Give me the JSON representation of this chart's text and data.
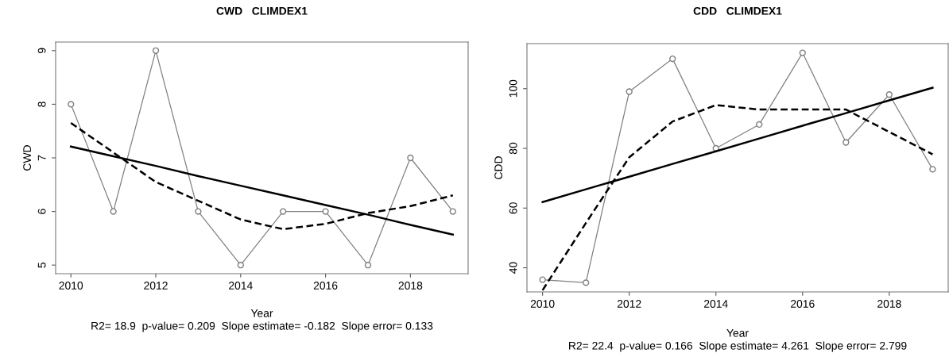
{
  "chart_data": [
    {
      "type": "line",
      "title": "CWD   CLIMDEX1",
      "xlabel": "Year",
      "ylabel": "CWD",
      "annotations": [
        "R2= 18.9  p-value= 0.209  Slope estimate= -0.182  Slope error= 0.133"
      ],
      "x": [
        2010,
        2011,
        2012,
        2013,
        2014,
        2015,
        2016,
        2017,
        2018,
        2019
      ],
      "series": [
        {
          "color": "#808080",
          "values": [
            8,
            6,
            9,
            6,
            5,
            6,
            6,
            5,
            7,
            6
          ],
          "marker": "circle",
          "line_style": "solid"
        },
        {
          "color": "#000000",
          "values": [
            7.21,
            7.03,
            6.85,
            6.66,
            6.48,
            6.3,
            6.12,
            5.94,
            5.75,
            5.57
          ],
          "marker": "none",
          "line_style": "solid"
        },
        {
          "color": "#000000",
          "values": [
            7.65,
            7.1,
            6.55,
            6.2,
            5.85,
            5.67,
            5.77,
            5.97,
            6.1,
            6.3
          ],
          "marker": "none",
          "line_style": "dashed"
        }
      ],
      "xlim": [
        2009.64,
        2019.36
      ],
      "ylim": [
        4.84,
        9.16
      ],
      "xticks": [
        2010,
        2012,
        2014,
        2016,
        2018
      ],
      "yticks": [
        5,
        6,
        7,
        8,
        9
      ],
      "grid": false
    },
    {
      "type": "line",
      "title": "CDD   CLIMDEX1",
      "xlabel": "Year",
      "ylabel": "CDD",
      "annotations": [
        "R2= 22.4  p-value= 0.166  Slope estimate= 4.261  Slope error= 2.799"
      ],
      "x": [
        2010,
        2011,
        2012,
        2013,
        2014,
        2015,
        2016,
        2017,
        2018,
        2019
      ],
      "series": [
        {
          "color": "#808080",
          "values": [
            36,
            35,
            99,
            110,
            80,
            88,
            112,
            82,
            98,
            73
          ],
          "marker": "circle",
          "line_style": "solid"
        },
        {
          "color": "#000000",
          "values": [
            62.0,
            66.3,
            70.5,
            74.8,
            79.0,
            83.3,
            87.6,
            91.8,
            96.1,
            100.3
          ],
          "marker": "none",
          "line_style": "solid"
        },
        {
          "color": "#000000",
          "values": [
            32.5,
            55,
            77,
            89,
            94.5,
            93,
            93,
            93,
            85.5,
            78
          ],
          "marker": "none",
          "line_style": "dashed"
        }
      ],
      "xlim": [
        2009.64,
        2019.36
      ],
      "ylim": [
        31.92,
        115.08
      ],
      "xticks": [
        2010,
        2012,
        2014,
        2016,
        2018
      ],
      "yticks": [
        40,
        60,
        80,
        100
      ],
      "grid": false
    }
  ]
}
